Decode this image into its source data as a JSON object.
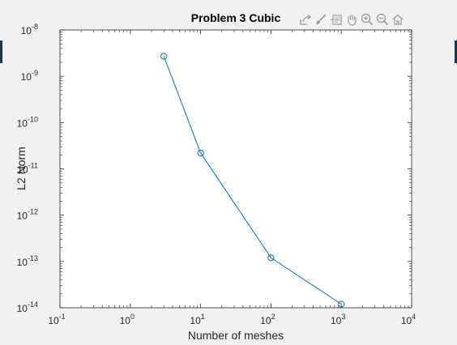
{
  "window": {
    "toolbar_icons": [
      "export-icon",
      "brush-icon",
      "data-tip-icon",
      "pan-icon",
      "zoom-in-icon",
      "zoom-out-icon",
      "home-icon"
    ]
  },
  "colors": {
    "background": "#f0f0f0",
    "axes_background": "#ffffff",
    "series": "#0072bd",
    "axis_text": "#262626",
    "edge_tab": "#22364e"
  },
  "chart_data": {
    "type": "line",
    "title": "Problem 3 Cubic",
    "xlabel": "Number of meshes",
    "ylabel": "L2 Norm",
    "xscale": "log",
    "yscale": "log",
    "xlim": [
      0.1,
      10000
    ],
    "ylim": [
      1e-14,
      1e-08
    ],
    "grid": false,
    "legend": "none",
    "marker": "circle",
    "x_ticks": [
      {
        "value": 0.1,
        "base": "10",
        "exp": "-1"
      },
      {
        "value": 1,
        "base": "10",
        "exp": "0"
      },
      {
        "value": 10,
        "base": "10",
        "exp": "1"
      },
      {
        "value": 100,
        "base": "10",
        "exp": "2"
      },
      {
        "value": 1000,
        "base": "10",
        "exp": "3"
      },
      {
        "value": 10000,
        "base": "10",
        "exp": "4"
      }
    ],
    "y_ticks": [
      {
        "value": 1e-14,
        "base": "10",
        "exp": "-14"
      },
      {
        "value": 1e-13,
        "base": "10",
        "exp": "-13"
      },
      {
        "value": 1e-12,
        "base": "10",
        "exp": "-12"
      },
      {
        "value": 1e-11,
        "base": "10",
        "exp": "-11"
      },
      {
        "value": 1e-10,
        "base": "10",
        "exp": "-10"
      },
      {
        "value": 1e-09,
        "base": "10",
        "exp": "-9"
      },
      {
        "value": 1e-08,
        "base": "10",
        "exp": "-8"
      }
    ],
    "series": [
      {
        "x": [
          3,
          10,
          100,
          1000
        ],
        "y": [
          2.7e-09,
          2.2e-11,
          1.2e-13,
          1.2e-14
        ]
      }
    ]
  }
}
